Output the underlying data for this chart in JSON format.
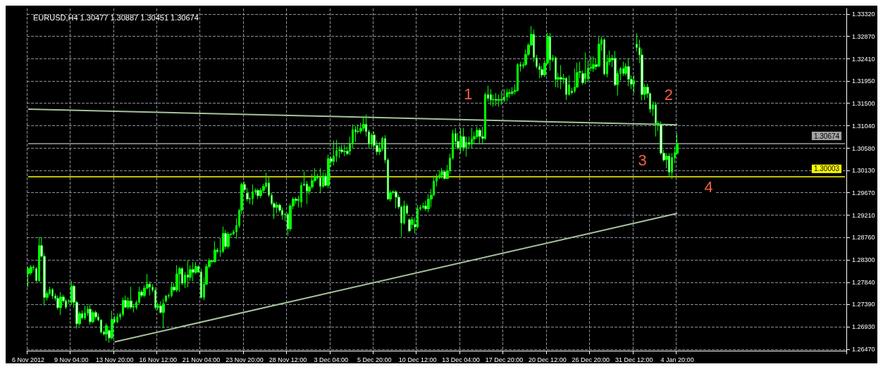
{
  "chart_data": {
    "type": "candlestick",
    "title": "EURUSD,H4 1.30477 1.30887 1.30451 1.30674",
    "color": "#00ff00",
    "categories": [
      "6 Nov 2012",
      null,
      null,
      null,
      null,
      null,
      null,
      null,
      null,
      null,
      null,
      null,
      null,
      null,
      null,
      null,
      "9 Nov 04:00",
      null,
      null,
      null,
      null,
      null,
      null,
      null,
      null,
      null,
      null,
      null,
      null,
      null,
      null,
      null,
      "13 Nov 20:00",
      null,
      null,
      null,
      null,
      null,
      null,
      null,
      null,
      null,
      null,
      null,
      null,
      null,
      null,
      null,
      "16 Nov 12:00",
      null,
      null,
      null,
      null,
      null,
      null,
      null,
      null,
      null,
      null,
      null,
      null,
      null,
      null,
      null,
      "21 Nov 04:00",
      null,
      null,
      null,
      null,
      null,
      null,
      null,
      null,
      null,
      null,
      null,
      null,
      null,
      null,
      null,
      "23 Nov 20:00",
      null,
      null,
      null,
      null,
      null,
      null,
      null,
      null,
      null,
      null,
      null,
      null,
      null,
      null,
      null,
      "28 Nov 12:00",
      null,
      null,
      null,
      null,
      null,
      null,
      null,
      null,
      null,
      null,
      null,
      null,
      null,
      null,
      null,
      "3 Dec 04:00",
      null,
      null,
      null,
      null,
      null,
      null,
      null,
      null,
      null,
      null,
      null,
      null,
      null,
      null,
      null,
      "5 Dec 20:00",
      null,
      null,
      null,
      null,
      null,
      null,
      null,
      null,
      null,
      null,
      null,
      null,
      null,
      null,
      null,
      "10 Dec 12:00",
      null,
      null,
      null,
      null,
      null,
      null,
      null,
      null,
      null,
      null,
      null,
      null,
      null,
      null,
      null,
      "13 Dec 04:00",
      null,
      null,
      null,
      null,
      null,
      null,
      null,
      null,
      null,
      null,
      null,
      null,
      null,
      null,
      null,
      "17 Dec 20:00",
      null,
      null,
      null,
      null,
      null,
      null,
      null,
      null,
      null,
      null,
      null,
      null,
      null,
      null,
      null,
      "20 Dec 12:00",
      null,
      null,
      null,
      null,
      null,
      null,
      null,
      null,
      null,
      null,
      null,
      null,
      null,
      null,
      null,
      "26 Dec 20:00",
      null,
      null,
      null,
      null,
      null,
      null,
      null,
      null,
      null,
      null,
      null,
      null,
      null,
      null,
      null,
      "31 Dec 12:00",
      null,
      null,
      null,
      null,
      null,
      null,
      null,
      null,
      null,
      null,
      null,
      null,
      null,
      null,
      null,
      "4 Jan 20:00",
      null,
      null,
      null,
      null,
      null,
      null,
      null,
      null,
      null,
      null,
      null,
      null,
      null,
      null,
      null,
      null,
      null,
      null,
      null,
      null,
      null,
      null,
      null,
      null,
      null,
      null,
      null,
      null,
      null,
      null,
      null,
      null,
      null,
      null,
      null,
      null,
      null,
      null,
      null,
      null,
      null,
      null,
      null,
      null,
      null,
      null,
      null,
      null,
      null,
      null,
      null,
      null,
      null,
      null,
      null,
      null,
      null,
      null,
      null,
      null,
      null,
      null
    ],
    "ohlc": [
      [
        1.2801,
        1.2815,
        1.2774,
        1.2812
      ],
      [
        1.2803,
        1.2819,
        1.2799,
        1.2815
      ],
      [
        1.2815,
        1.2819,
        1.2808,
        1.2814
      ],
      [
        1.2812,
        1.2815,
        1.2785,
        1.2787
      ],
      [
        1.2787,
        1.2876,
        1.2785,
        1.2859
      ],
      [
        1.2859,
        1.2876,
        1.2834,
        1.2837
      ],
      [
        1.2837,
        1.2843,
        1.2736,
        1.2753
      ],
      [
        1.2753,
        1.2767,
        1.2747,
        1.2761
      ],
      [
        1.2761,
        1.2775,
        1.2757,
        1.2769
      ],
      [
        1.2769,
        1.2772,
        1.275,
        1.2756
      ],
      [
        1.2756,
        1.2761,
        1.2746,
        1.2751
      ],
      [
        1.2751,
        1.2757,
        1.2728,
        1.2732
      ],
      [
        1.2732,
        1.2764,
        1.2717,
        1.2754
      ],
      [
        1.2754,
        1.2758,
        1.2742,
        1.2746
      ],
      [
        1.2746,
        1.275,
        1.2729,
        1.2733
      ],
      [
        1.2745,
        1.2749,
        1.274,
        1.2746
      ],
      [
        1.2743,
        1.2787,
        1.2739,
        1.2776
      ],
      [
        1.2776,
        1.2779,
        1.2732,
        1.2743
      ],
      [
        1.2743,
        1.2746,
        1.2689,
        1.2699
      ],
      [
        1.2699,
        1.2724,
        1.2695,
        1.272
      ],
      [
        1.272,
        1.2726,
        1.2708,
        1.2711
      ],
      [
        1.2711,
        1.2736,
        1.2707,
        1.2721
      ],
      [
        1.2721,
        1.2736,
        1.2715,
        1.2729
      ],
      [
        1.2729,
        1.2739,
        1.2697,
        1.2703
      ],
      [
        1.2703,
        1.2726,
        1.27,
        1.2722
      ],
      [
        1.2722,
        1.2726,
        1.2708,
        1.2713
      ],
      [
        1.2713,
        1.272,
        1.2704,
        1.2707
      ],
      [
        1.2707,
        1.2708,
        1.2679,
        1.2682
      ],
      [
        1.2682,
        1.2686,
        1.2675,
        1.2678
      ],
      [
        1.2678,
        1.27,
        1.2664,
        1.2695
      ],
      [
        1.2685,
        1.2689,
        1.266,
        1.267
      ],
      [
        1.267,
        1.2726,
        1.2667,
        1.2708
      ],
      [
        1.2708,
        1.2715,
        1.27,
        1.2703
      ],
      [
        1.2703,
        1.272,
        1.27,
        1.2713
      ],
      [
        1.2713,
        1.2722,
        1.2707,
        1.2718
      ],
      [
        1.2718,
        1.2753,
        1.2714,
        1.2747
      ],
      [
        1.2747,
        1.2757,
        1.2731,
        1.2733
      ],
      [
        1.2733,
        1.2753,
        1.2729,
        1.2746
      ],
      [
        1.2746,
        1.2775,
        1.2729,
        1.2733
      ],
      [
        1.2733,
        1.2739,
        1.2722,
        1.2735
      ],
      [
        1.2732,
        1.2747,
        1.2728,
        1.2743
      ],
      [
        1.2743,
        1.2775,
        1.274,
        1.2764
      ],
      [
        1.2764,
        1.2768,
        1.2753,
        1.2757
      ],
      [
        1.2757,
        1.2778,
        1.2753,
        1.2772
      ],
      [
        1.2772,
        1.2801,
        1.2769,
        1.278
      ],
      [
        1.278,
        1.2786,
        1.2757,
        1.2774
      ],
      [
        1.2774,
        1.278,
        1.2764,
        1.2768
      ],
      [
        1.2768,
        1.2774,
        1.2728,
        1.2732
      ],
      [
        1.2732,
        1.2742,
        1.2728,
        1.2736
      ],
      [
        1.2736,
        1.2745,
        1.272,
        1.2722
      ],
      [
        1.2722,
        1.275,
        1.269,
        1.274
      ],
      [
        1.2746,
        1.2758,
        1.2742,
        1.2756
      ],
      [
        1.2756,
        1.2761,
        1.2751,
        1.2757
      ],
      [
        1.2757,
        1.2785,
        1.2753,
        1.2774
      ],
      [
        1.2774,
        1.2782,
        1.2764,
        1.2768
      ],
      [
        1.2768,
        1.2819,
        1.2764,
        1.2801
      ],
      [
        1.2801,
        1.2815,
        1.2764,
        1.2812
      ],
      [
        1.2812,
        1.2815,
        1.2778,
        1.2782
      ],
      [
        1.2782,
        1.2805,
        1.2772,
        1.2799
      ],
      [
        1.2799,
        1.2829,
        1.2774,
        1.2794
      ],
      [
        1.2794,
        1.2819,
        1.2787,
        1.281
      ],
      [
        1.281,
        1.2825,
        1.2786,
        1.2804
      ],
      [
        1.2804,
        1.2826,
        1.2801,
        1.2816
      ],
      [
        1.2816,
        1.2819,
        1.2803,
        1.2805
      ],
      [
        1.2805,
        1.2812,
        1.275,
        1.2753
      ],
      [
        1.2753,
        1.2794,
        1.2747,
        1.278
      ],
      [
        1.278,
        1.2822,
        1.2778,
        1.2816
      ],
      [
        1.2816,
        1.2833,
        1.2812,
        1.2828
      ],
      [
        1.2828,
        1.283,
        1.2822,
        1.2826
      ],
      [
        1.2826,
        1.2868,
        1.2824,
        1.285
      ],
      [
        1.285,
        1.2854,
        1.2843,
        1.2847
      ],
      [
        1.2847,
        1.2875,
        1.2836,
        1.2848
      ],
      [
        1.2847,
        1.2898,
        1.2844,
        1.2884
      ],
      [
        1.2884,
        1.2891,
        1.2851,
        1.2857
      ],
      [
        1.2857,
        1.2887,
        1.2853,
        1.2882
      ],
      [
        1.2882,
        1.2884,
        1.2877,
        1.2883
      ],
      [
        1.2883,
        1.2891,
        1.288,
        1.2887
      ],
      [
        1.2887,
        1.2915,
        1.2873,
        1.29
      ],
      [
        1.29,
        1.2934,
        1.2895,
        1.2931
      ],
      [
        1.2931,
        1.2988,
        1.2923,
        1.2984
      ],
      [
        1.2984,
        1.299,
        1.2969,
        1.2973
      ],
      [
        1.2966,
        1.2977,
        1.2949,
        1.2954
      ],
      [
        1.2954,
        1.2959,
        1.2944,
        1.2955
      ],
      [
        1.2955,
        1.2984,
        1.2942,
        1.2969
      ],
      [
        1.2969,
        1.2976,
        1.2963,
        1.2972
      ],
      [
        1.2972,
        1.2975,
        1.2954,
        1.2961
      ],
      [
        1.2961,
        1.2977,
        1.2956,
        1.2972
      ],
      [
        1.2972,
        1.2985,
        1.2966,
        1.298
      ],
      [
        1.298,
        1.3008,
        1.2975,
        1.2987
      ],
      [
        1.2987,
        1.2998,
        1.2958,
        1.2962
      ],
      [
        1.2962,
        1.2967,
        1.2941,
        1.2945
      ],
      [
        1.2945,
        1.2949,
        1.2913,
        1.2937
      ],
      [
        1.2937,
        1.2948,
        1.2925,
        1.2942
      ],
      [
        1.2942,
        1.2945,
        1.2927,
        1.2931
      ],
      [
        1.2931,
        1.2937,
        1.2912,
        1.2922
      ],
      [
        1.2922,
        1.2926,
        1.2909,
        1.2923
      ],
      [
        1.2923,
        1.2926,
        1.2879,
        1.2893
      ],
      [
        1.2893,
        1.2945,
        1.2888,
        1.294
      ],
      [
        1.294,
        1.2958,
        1.2933,
        1.2954
      ],
      [
        1.2954,
        1.2958,
        1.2944,
        1.2951
      ],
      [
        1.2951,
        1.2961,
        1.2937,
        1.2954
      ],
      [
        1.2948,
        1.2988,
        1.2937,
        1.2982
      ],
      [
        1.2982,
        1.301,
        1.2981,
        1.2985
      ],
      [
        1.2985,
        1.2991,
        1.2944,
        1.297
      ],
      [
        1.297,
        1.2982,
        1.2963,
        1.2979
      ],
      [
        1.2979,
        1.3006,
        1.2975,
        1.2992
      ],
      [
        1.2992,
        1.3017,
        1.2988,
        1.3001
      ],
      [
        1.3001,
        1.3006,
        1.2994,
        1.2998
      ],
      [
        1.2998,
        1.3017,
        1.2966,
        1.298
      ],
      [
        1.298,
        1.3009,
        1.2977,
        1.3001
      ],
      [
        1.3001,
        1.3008,
        1.298,
        1.2982
      ],
      [
        1.2982,
        1.3045,
        1.2976,
        1.3037
      ],
      [
        1.3037,
        1.3041,
        1.302,
        1.3031
      ],
      [
        1.3031,
        1.3074,
        1.3023,
        1.3042
      ],
      [
        1.3042,
        1.3075,
        1.303,
        1.3053
      ],
      [
        1.3053,
        1.3062,
        1.3038,
        1.3055
      ],
      [
        1.3055,
        1.3065,
        1.3047,
        1.3051
      ],
      [
        1.3051,
        1.3065,
        1.3042,
        1.3052
      ],
      [
        1.3052,
        1.3062,
        1.3044,
        1.3047
      ],
      [
        1.3052,
        1.3082,
        1.3044,
        1.3068
      ],
      [
        1.3068,
        1.3107,
        1.3057,
        1.3096
      ],
      [
        1.3096,
        1.3103,
        1.3071,
        1.3092
      ],
      [
        1.3092,
        1.3107,
        1.3088,
        1.3093
      ],
      [
        1.3093,
        1.311,
        1.3088,
        1.3099
      ],
      [
        1.3099,
        1.3124,
        1.3093,
        1.3107
      ],
      [
        1.3107,
        1.3127,
        1.3082,
        1.3092
      ],
      [
        1.3092,
        1.3096,
        1.3057,
        1.3067
      ],
      [
        1.3067,
        1.3089,
        1.306,
        1.3085
      ],
      [
        1.3085,
        1.3092,
        1.3059,
        1.3064
      ],
      [
        1.3064,
        1.3074,
        1.3044,
        1.3051
      ],
      [
        1.3051,
        1.3071,
        1.3044,
        1.3057
      ],
      [
        1.3057,
        1.3082,
        1.3052,
        1.3078
      ],
      [
        1.3078,
        1.3085,
        1.3027,
        1.3034
      ],
      [
        1.3034,
        1.3038,
        1.2952,
        1.2954
      ],
      [
        1.2954,
        1.2972,
        1.2949,
        1.2967
      ],
      [
        1.2967,
        1.2972,
        1.2963,
        1.2969
      ],
      [
        1.2969,
        1.2972,
        1.2935,
        1.2958
      ],
      [
        1.2958,
        1.2963,
        1.2934,
        1.2938
      ],
      [
        1.2938,
        1.2941,
        1.2877,
        1.2905
      ],
      [
        1.2905,
        1.2951,
        1.2902,
        1.294
      ],
      [
        1.294,
        1.2944,
        1.2922,
        1.2925
      ],
      [
        1.2912,
        1.2915,
        1.2886,
        1.2889
      ],
      [
        1.2902,
        1.2918,
        1.2893,
        1.2912
      ],
      [
        1.2902,
        1.2916,
        1.2884,
        1.2897
      ],
      [
        1.2897,
        1.2942,
        1.2894,
        1.2934
      ],
      [
        1.2934,
        1.2942,
        1.293,
        1.2937
      ],
      [
        1.2937,
        1.2947,
        1.2934,
        1.294
      ],
      [
        1.294,
        1.2951,
        1.293,
        1.2934
      ],
      [
        1.2934,
        1.2964,
        1.2927,
        1.2954
      ],
      [
        1.2954,
        1.2975,
        1.2937,
        1.2962
      ],
      [
        1.2962,
        1.3002,
        1.2961,
        1.2991
      ],
      [
        1.2991,
        1.3006,
        1.298,
        1.2998
      ],
      [
        1.2998,
        1.3013,
        1.2995,
        1.3003
      ],
      [
        1.3003,
        1.3018,
        1.2996,
        1.301
      ],
      [
        1.301,
        1.3013,
        1.2994,
        1.2996
      ],
      [
        1.2996,
        1.3024,
        1.2995,
        1.3012
      ],
      [
        1.3012,
        1.3047,
        1.3006,
        1.3038
      ],
      [
        1.3038,
        1.3096,
        1.3035,
        1.3088
      ],
      [
        1.3088,
        1.3099,
        1.306,
        1.3072
      ],
      [
        1.3072,
        1.3089,
        1.3055,
        1.3059
      ],
      [
        1.306,
        1.3099,
        1.3048,
        1.3082
      ],
      [
        1.3082,
        1.31,
        1.3052,
        1.306
      ],
      [
        1.306,
        1.3082,
        1.3041,
        1.307
      ],
      [
        1.307,
        1.3082,
        1.3057,
        1.3066
      ],
      [
        1.3067,
        1.31,
        1.3059,
        1.3077
      ],
      [
        1.3077,
        1.3092,
        1.3066,
        1.3082
      ],
      [
        1.3082,
        1.3102,
        1.3077,
        1.3095
      ],
      [
        1.3095,
        1.3099,
        1.3066,
        1.3082
      ],
      [
        1.3082,
        1.3102,
        1.3066,
        1.3078
      ],
      [
        1.3078,
        1.3172,
        1.3075,
        1.3168
      ],
      [
        1.3168,
        1.3186,
        1.3154,
        1.316
      ],
      [
        1.3168,
        1.3179,
        1.3146,
        1.3157
      ],
      [
        1.3157,
        1.3168,
        1.3143,
        1.3158
      ],
      [
        1.3158,
        1.3171,
        1.3145,
        1.3156
      ],
      [
        1.3156,
        1.3168,
        1.3143,
        1.3158
      ],
      [
        1.3158,
        1.3176,
        1.3147,
        1.3156
      ],
      [
        1.3156,
        1.3179,
        1.3153,
        1.3163
      ],
      [
        1.3163,
        1.318,
        1.3154,
        1.3172
      ],
      [
        1.3172,
        1.3179,
        1.3161,
        1.317
      ],
      [
        1.317,
        1.3183,
        1.3166,
        1.3174
      ],
      [
        1.3174,
        1.3189,
        1.3168,
        1.3176
      ],
      [
        1.3176,
        1.3232,
        1.3174,
        1.3229
      ],
      [
        1.3229,
        1.3235,
        1.3215,
        1.3226
      ],
      [
        1.3226,
        1.3235,
        1.3221,
        1.3229
      ],
      [
        1.3229,
        1.326,
        1.3226,
        1.325
      ],
      [
        1.325,
        1.3273,
        1.3247,
        1.3269
      ],
      [
        1.3269,
        1.3308,
        1.3267,
        1.3291
      ],
      [
        1.3291,
        1.3301,
        1.3235,
        1.3244
      ],
      [
        1.3243,
        1.3249,
        1.3221,
        1.3225
      ],
      [
        1.3225,
        1.3232,
        1.3201,
        1.3219
      ],
      [
        1.3219,
        1.3226,
        1.3203,
        1.3208
      ],
      [
        1.3208,
        1.3238,
        1.3204,
        1.3232
      ],
      [
        1.3232,
        1.3294,
        1.3229,
        1.3286
      ],
      [
        1.3286,
        1.3294,
        1.3217,
        1.3239
      ],
      [
        1.3239,
        1.3249,
        1.3235,
        1.3243
      ],
      [
        1.3243,
        1.3246,
        1.3183,
        1.3199
      ],
      [
        1.3199,
        1.3213,
        1.3182,
        1.3203
      ],
      [
        1.3203,
        1.3228,
        1.3179,
        1.3199
      ],
      [
        1.3199,
        1.321,
        1.319,
        1.3201
      ],
      [
        1.3201,
        1.3204,
        1.3157,
        1.3168
      ],
      [
        1.3168,
        1.3207,
        1.3166,
        1.3188
      ],
      [
        1.3175,
        1.3182,
        1.3168,
        1.3172
      ],
      [
        1.3175,
        1.3221,
        1.3171,
        1.3183
      ],
      [
        1.3183,
        1.3233,
        1.3182,
        1.3213
      ],
      [
        1.3213,
        1.3235,
        1.3201,
        1.3215
      ],
      [
        1.3211,
        1.3217,
        1.3188,
        1.3192
      ],
      [
        1.3201,
        1.3254,
        1.3189,
        1.3211
      ],
      [
        1.32,
        1.3238,
        1.3193,
        1.3222
      ],
      [
        1.3222,
        1.3246,
        1.3215,
        1.3224
      ],
      [
        1.3221,
        1.3246,
        1.3214,
        1.3229
      ],
      [
        1.3229,
        1.3242,
        1.3218,
        1.3225
      ],
      [
        1.3226,
        1.3285,
        1.3224,
        1.3271
      ],
      [
        1.3271,
        1.3286,
        1.3257,
        1.328
      ],
      [
        1.328,
        1.3283,
        1.3207,
        1.321
      ],
      [
        1.321,
        1.3249,
        1.3203,
        1.3235
      ],
      [
        1.3235,
        1.3258,
        1.3228,
        1.3242
      ],
      [
        1.3242,
        1.3249,
        1.3224,
        1.3239
      ],
      [
        1.3242,
        1.3257,
        1.3185,
        1.3188
      ],
      [
        1.3188,
        1.3217,
        1.3166,
        1.3211
      ],
      [
        1.3211,
        1.3224,
        1.3197,
        1.3221
      ],
      [
        1.3221,
        1.3235,
        1.3206,
        1.3211
      ],
      [
        1.3211,
        1.3232,
        1.3207,
        1.3225
      ],
      [
        1.3225,
        1.3242,
        1.3185,
        1.3199
      ],
      [
        1.3199,
        1.3207,
        1.3179,
        1.3189
      ],
      [
        1.3189,
        1.3207,
        1.3171,
        1.3196
      ],
      [
        1.3271,
        1.3293,
        1.3256,
        1.3264
      ],
      [
        1.3264,
        1.328,
        1.3232,
        1.3249
      ],
      [
        1.3249,
        1.3262,
        1.3156,
        1.3168
      ],
      [
        1.3168,
        1.319,
        1.3157,
        1.3183
      ],
      [
        1.3183,
        1.319,
        1.3161,
        1.317
      ],
      [
        1.317,
        1.3172,
        1.3131,
        1.3138
      ],
      [
        1.3138,
        1.3154,
        1.3124,
        1.3147
      ],
      [
        1.3147,
        1.3153,
        1.3082,
        1.3109
      ],
      [
        1.3109,
        1.3114,
        1.3093,
        1.3107
      ],
      [
        1.3107,
        1.3113,
        1.3045,
        1.3048
      ],
      [
        1.3048,
        1.3055,
        1.3031,
        1.3034
      ],
      [
        1.3035,
        1.3048,
        1.3017,
        1.3042
      ],
      [
        1.3042,
        1.3048,
        1.2999,
        1.3009
      ],
      [
        1.3009,
        1.3048,
        1.2995,
        1.3039
      ],
      [
        1.3039,
        1.3062,
        1.3027,
        1.3049
      ],
      [
        1.30477,
        1.30887,
        1.30451,
        1.30674
      ],
      null,
      null,
      null,
      null,
      null,
      null,
      null,
      null,
      null,
      null,
      null,
      null,
      null,
      null,
      null,
      null,
      null,
      null,
      null,
      null,
      null,
      null,
      null,
      null,
      null,
      null,
      null,
      null,
      null,
      null,
      null,
      null,
      null,
      null,
      null,
      null,
      null,
      null,
      null,
      null,
      null,
      null,
      null,
      null,
      null,
      null,
      null,
      null,
      null,
      null,
      null,
      null,
      null,
      null,
      null,
      null,
      null,
      null,
      null,
      null,
      null,
      null
    ],
    "series": [
      {
        "type": "line",
        "color": "#a3c49a",
        "x": [
          "6 Nov 2012",
          "4 Jan 20:00"
        ],
        "values": [
          1.3138,
          1.3106
        ]
      },
      {
        "type": "line",
        "color": "#a3c49a",
        "x": [
          "13 Nov 20:00",
          "4 Jan 20:00"
        ],
        "values": [
          1.2662,
          1.2925
        ]
      }
    ],
    "ref_lines": [
      {
        "axis": "y",
        "value": 1.30003,
        "label": "1.30003",
        "color": "#ffff00"
      },
      {
        "axis": "y",
        "value": 1.30674,
        "label": "1.30674",
        "color": "#a0a0a0"
      }
    ],
    "annotations": [
      "1",
      "2",
      "3",
      "4"
    ],
    "ylim": [
      1.2644,
      1.3344
    ],
    "yticks": [
      {
        "value": 1.2647,
        "label": "1.26470"
      },
      {
        "value": 1.2693,
        "label": "1.26930"
      },
      {
        "value": 1.2739,
        "label": "1.27390"
      },
      {
        "value": 1.2784,
        "label": "1.27840"
      },
      {
        "value": 1.283,
        "label": "1.28300"
      },
      {
        "value": 1.2876,
        "label": "1.28760"
      },
      {
        "value": 1.2921,
        "label": "1.29210"
      },
      {
        "value": 1.2967,
        "label": "1.29670"
      },
      {
        "value": 1.3013,
        "label": "1.30130"
      },
      {
        "value": 1.3058,
        "label": "1.30580"
      },
      {
        "value": 1.3104,
        "label": "1.31040"
      },
      {
        "value": 1.315,
        "label": "1.31500"
      },
      {
        "value": 1.3195,
        "label": "1.31950"
      },
      {
        "value": 1.3241,
        "label": "1.32410"
      },
      {
        "value": 1.3287,
        "label": "1.32870"
      },
      {
        "value": 1.3332,
        "label": "1.33320"
      }
    ],
    "grid": true
  }
}
